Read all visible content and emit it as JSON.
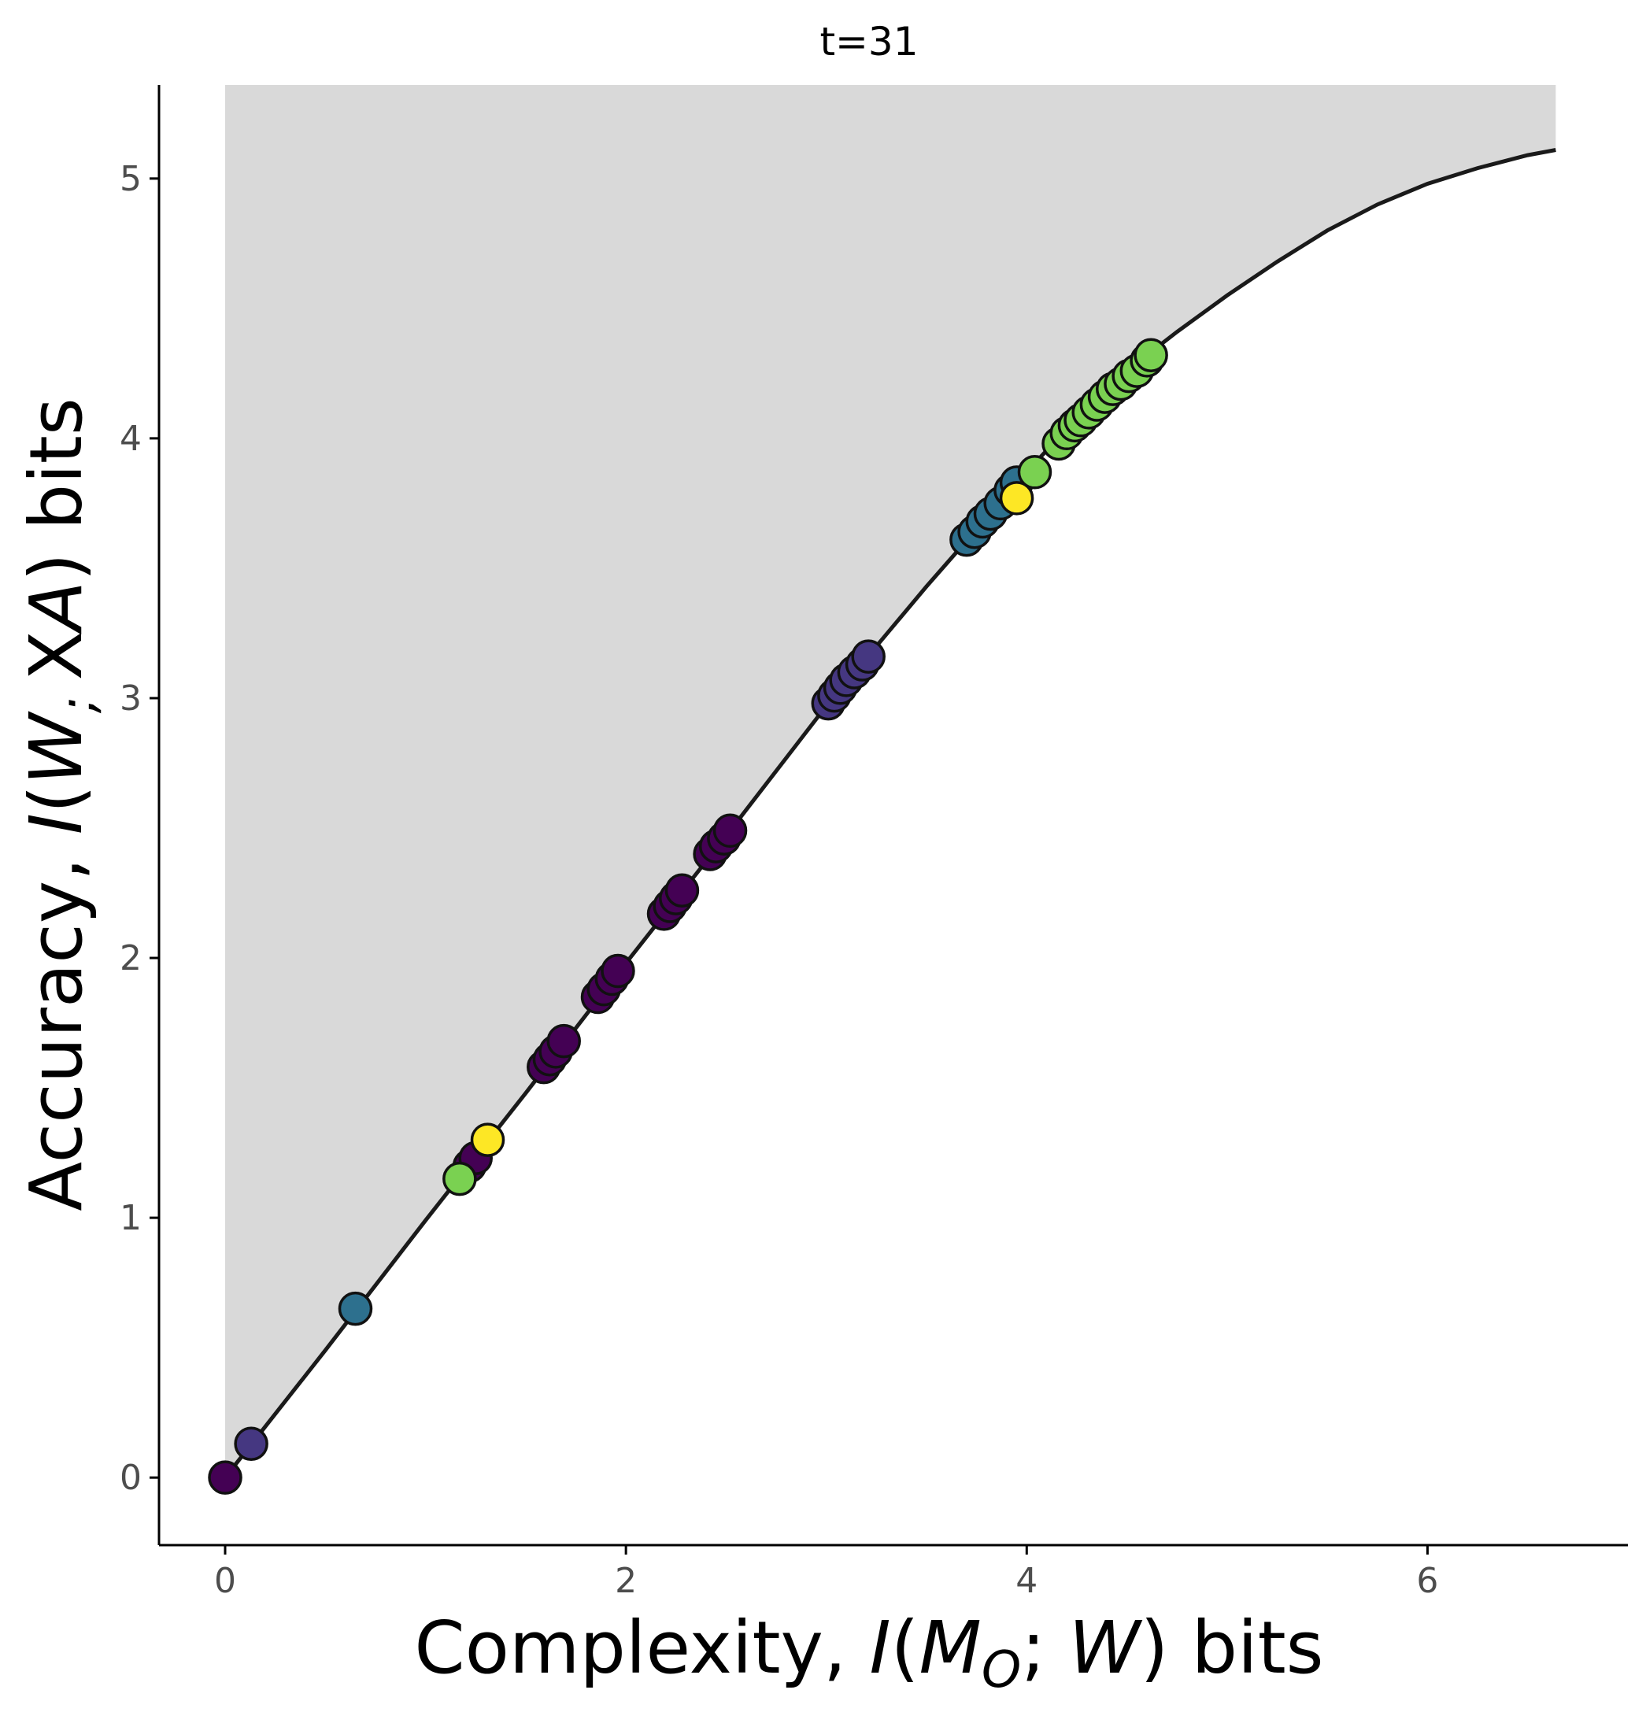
{
  "chart_data": {
    "type": "scatter",
    "title": "t=31",
    "xlabel": {
      "prefix": "Complexity, ",
      "math": [
        "I",
        "(",
        "M",
        "O",
        "; ",
        "W",
        ")"
      ],
      "suffix": " bits"
    },
    "ylabel": {
      "prefix": "Accuracy, ",
      "math": [
        "I",
        "(",
        "W",
        "; ",
        "X",
        "A",
        ")"
      ],
      "suffix": " bits"
    },
    "xlim": [
      -0.33,
      7.0
    ],
    "ylim": [
      -0.26,
      5.36
    ],
    "xticks": [
      0,
      2,
      4,
      6
    ],
    "yticks": [
      0,
      1,
      2,
      3,
      4,
      5
    ],
    "grid": false,
    "legend": "none",
    "region": {
      "fill": "#d9d9d9",
      "description_x_range": [
        0,
        6.64
      ]
    },
    "frontier": {
      "color": "#1a1a1a",
      "x": [
        0,
        0.5,
        1.0,
        1.5,
        2.0,
        2.5,
        3.0,
        3.25,
        3.5,
        3.75,
        4.0,
        4.25,
        4.5,
        4.6,
        4.75,
        5.0,
        5.25,
        5.5,
        5.75,
        6.0,
        6.25,
        6.5,
        6.64
      ],
      "y": [
        0,
        0.49,
        0.99,
        1.48,
        1.98,
        2.47,
        2.97,
        3.2,
        3.43,
        3.65,
        3.87,
        4.08,
        4.26,
        4.32,
        4.41,
        4.55,
        4.68,
        4.8,
        4.9,
        4.98,
        5.04,
        5.09,
        5.11
      ]
    },
    "series": [
      {
        "color": "#440154",
        "points": [
          [
            0.0,
            0.0
          ],
          [
            1.22,
            1.2
          ],
          [
            1.25,
            1.23
          ],
          [
            1.59,
            1.58
          ],
          [
            1.62,
            1.61
          ],
          [
            1.65,
            1.64
          ],
          [
            1.69,
            1.68
          ],
          [
            1.86,
            1.85
          ],
          [
            1.89,
            1.88
          ],
          [
            1.93,
            1.92
          ],
          [
            1.96,
            1.95
          ],
          [
            2.19,
            2.17
          ],
          [
            2.22,
            2.2
          ],
          [
            2.25,
            2.23
          ],
          [
            2.28,
            2.26
          ],
          [
            2.42,
            2.4
          ],
          [
            2.45,
            2.43
          ],
          [
            2.49,
            2.46
          ],
          [
            2.52,
            2.49
          ]
        ]
      },
      {
        "color": "#453781",
        "points": [
          [
            0.13,
            0.13
          ],
          [
            3.01,
            2.98
          ],
          [
            3.04,
            3.01
          ],
          [
            3.07,
            3.04
          ],
          [
            3.1,
            3.07
          ],
          [
            3.14,
            3.1
          ],
          [
            3.18,
            3.13
          ],
          [
            3.21,
            3.16
          ]
        ]
      },
      {
        "color": "#2d708e",
        "points": [
          [
            0.65,
            0.65
          ],
          [
            3.7,
            3.61
          ],
          [
            3.74,
            3.64
          ],
          [
            3.78,
            3.68
          ],
          [
            3.82,
            3.71
          ],
          [
            3.87,
            3.75
          ],
          [
            3.92,
            3.8
          ],
          [
            3.95,
            3.83
          ]
        ]
      },
      {
        "color": "#7ad151",
        "points": [
          [
            1.17,
            1.15
          ],
          [
            4.04,
            3.87
          ],
          [
            4.16,
            3.98
          ],
          [
            4.2,
            4.02
          ],
          [
            4.24,
            4.05
          ],
          [
            4.27,
            4.07
          ],
          [
            4.31,
            4.1
          ],
          [
            4.35,
            4.13
          ],
          [
            4.39,
            4.16
          ],
          [
            4.43,
            4.19
          ],
          [
            4.47,
            4.21
          ],
          [
            4.51,
            4.24
          ],
          [
            4.55,
            4.26
          ],
          [
            4.6,
            4.3
          ],
          [
            4.62,
            4.32
          ]
        ]
      },
      {
        "color": "#fde725",
        "points": [
          [
            1.31,
            1.3
          ],
          [
            3.95,
            3.77
          ]
        ]
      }
    ]
  }
}
